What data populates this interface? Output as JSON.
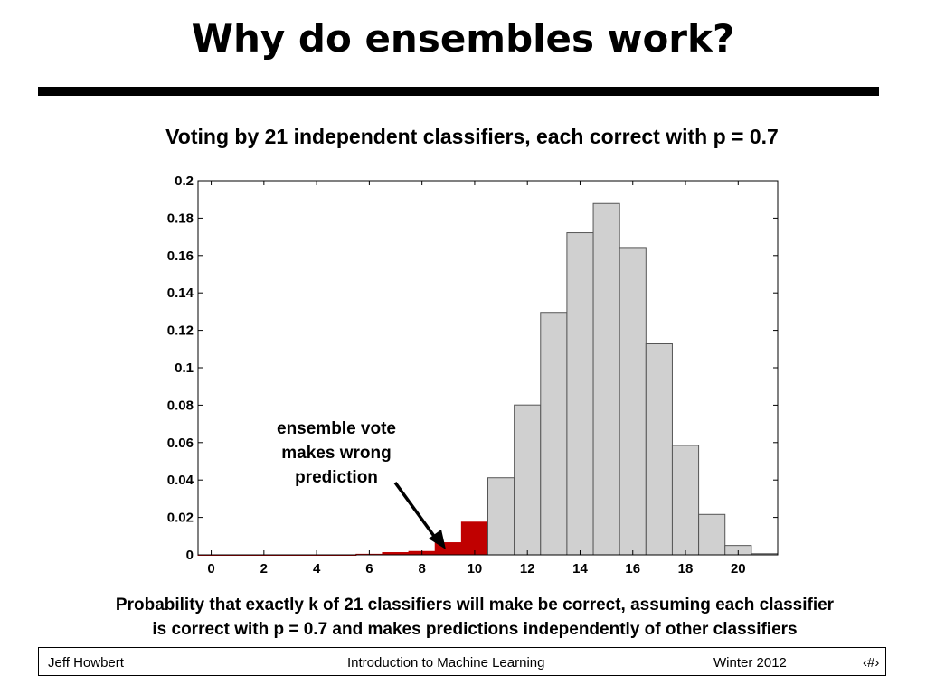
{
  "slide": {
    "title": "Why do ensembles work?",
    "caption_line1": "Probability that exactly k of 21 classifiers will make be correct, assuming each classifier",
    "caption_line2": "is correct with p = 0.7 and makes predictions independently of other classifiers"
  },
  "annotation": {
    "line1": "ensemble vote",
    "line2": "makes wrong",
    "line3": "prediction"
  },
  "footer": {
    "author": "Jeff Howbert",
    "course": "Introduction to Machine Learning",
    "term": "Winter 2012",
    "page": "‹#›"
  },
  "colors": {
    "wrong_bar": "#c00000",
    "correct_bar": "#d0d0d0",
    "bar_edge": "#555555"
  },
  "chart_data": {
    "type": "bar",
    "title": "Voting by 21 independent classifiers, each correct with p = 0.7",
    "xlabel": "",
    "ylabel": "",
    "x": [
      0,
      1,
      2,
      3,
      4,
      5,
      6,
      7,
      8,
      9,
      10,
      11,
      12,
      13,
      14,
      15,
      16,
      17,
      18,
      19,
      20,
      21
    ],
    "values": [
      0,
      0,
      0,
      0,
      0,
      0,
      0.0003,
      0.0012,
      0.0018,
      0.0065,
      0.0175,
      0.0412,
      0.0801,
      0.1296,
      0.1722,
      0.1878,
      0.1643,
      0.1128,
      0.0585,
      0.0216,
      0.005,
      0.0006
    ],
    "wrong_threshold": 10,
    "xlim": [
      -0.5,
      21.5
    ],
    "ylim": [
      0,
      0.2
    ],
    "xticks": [
      0,
      2,
      4,
      6,
      8,
      10,
      12,
      14,
      16,
      18,
      20
    ],
    "yticks": [
      0,
      0.02,
      0.04,
      0.06,
      0.08,
      0.1,
      0.12,
      0.14,
      0.16,
      0.18,
      0.2
    ],
    "ytick_labels": [
      "0",
      "0.02",
      "0.04",
      "0.06",
      "0.08",
      "0.1",
      "0.12",
      "0.14",
      "0.16",
      "0.18",
      "0.2"
    ],
    "grid": false,
    "legend": "none"
  }
}
